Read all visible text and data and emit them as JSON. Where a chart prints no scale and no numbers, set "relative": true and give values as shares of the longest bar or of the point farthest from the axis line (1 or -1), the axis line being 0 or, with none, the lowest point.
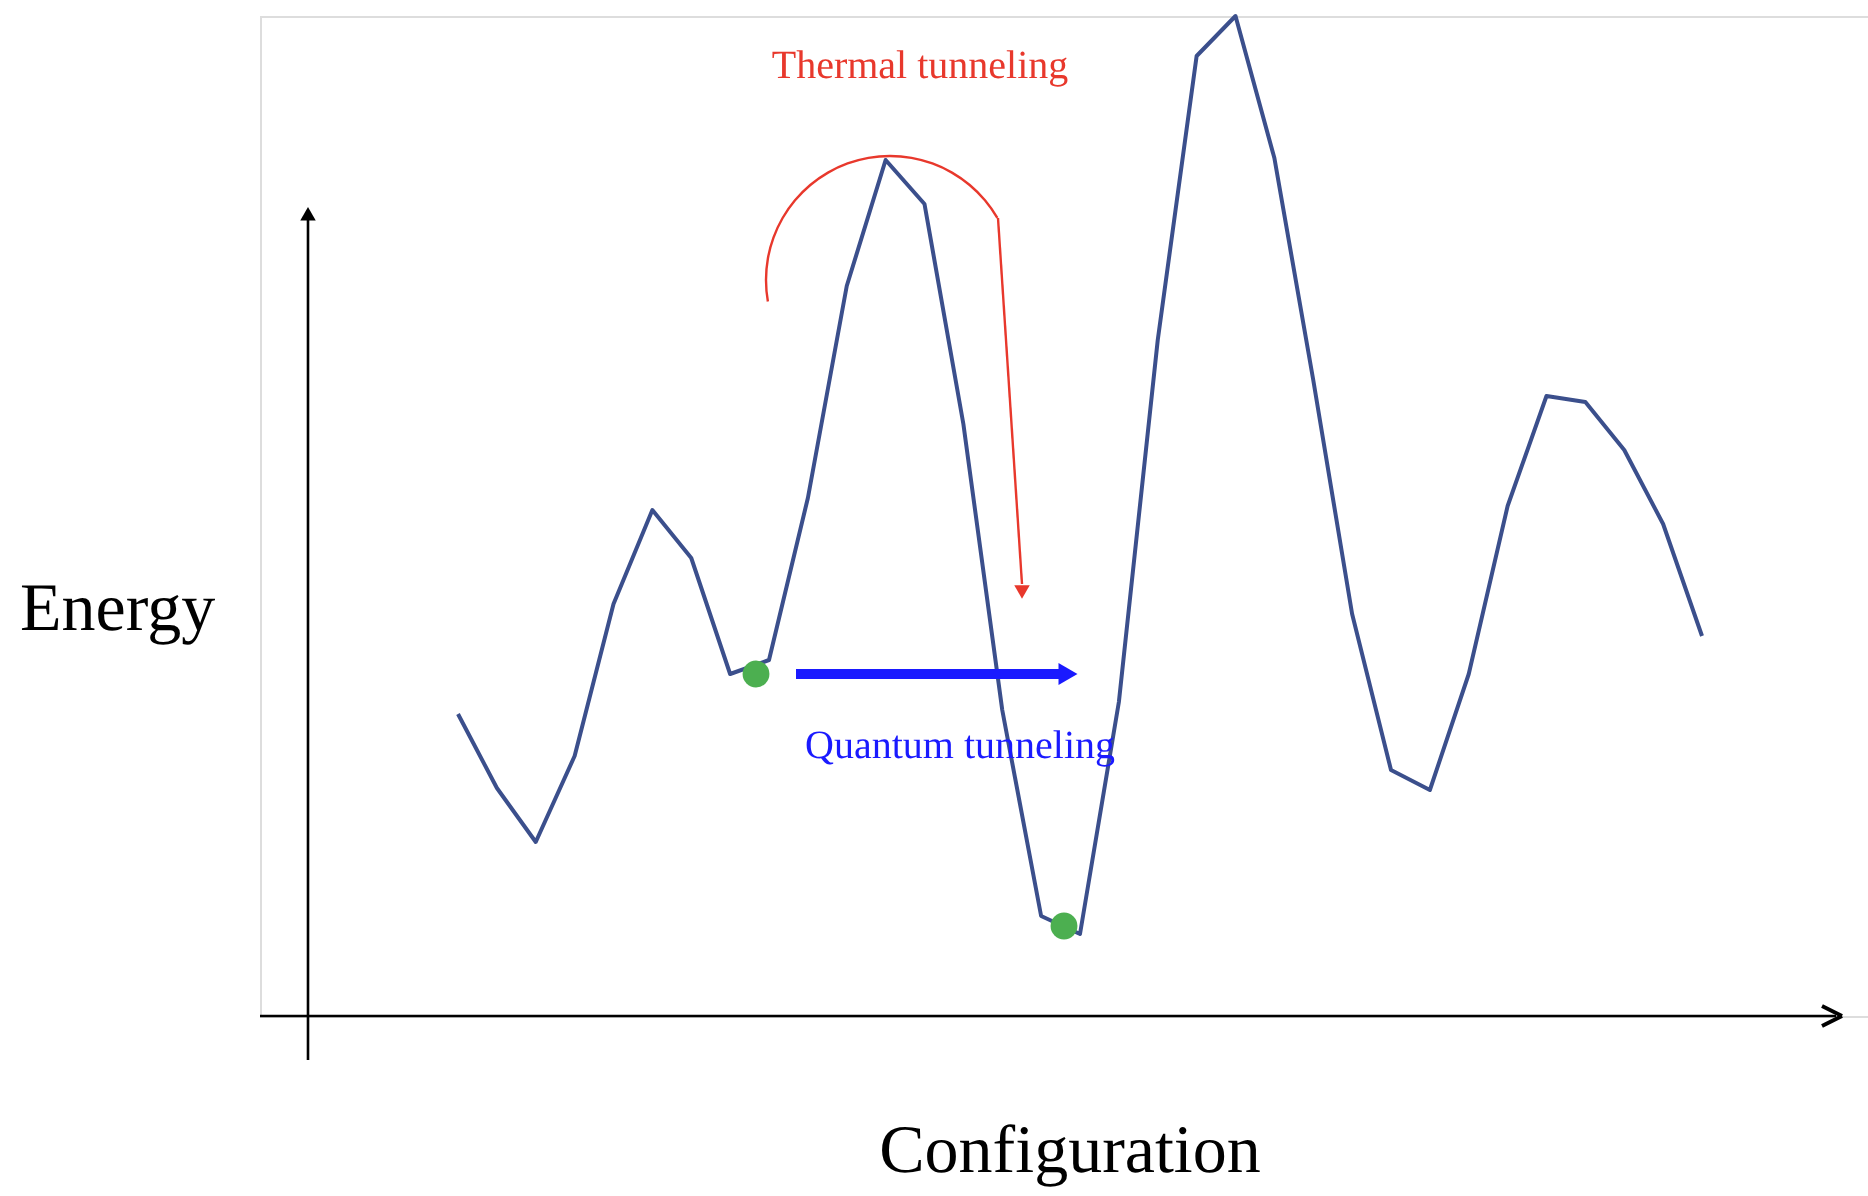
{
  "chart_data": {
    "type": "line",
    "relative": true,
    "xlabel": "Configuration",
    "ylabel": "Energy",
    "categories": [
      null,
      null,
      null,
      null,
      null,
      null,
      null,
      null,
      null,
      null,
      null,
      null,
      null,
      null,
      null,
      null,
      null,
      null,
      null,
      null,
      null,
      null,
      null,
      null,
      null,
      null,
      null,
      null,
      null,
      null,
      null,
      null,
      null
    ],
    "series": [
      {
        "color": "#3b4f8c",
        "values": [
          0.302,
          0.228,
          0.174,
          0.26,
          0.412,
          0.506,
          0.458,
          0.342,
          0.356,
          0.518,
          0.73,
          0.856,
          0.812,
          0.592,
          0.306,
          0.1,
          0.082,
          0.314,
          0.676,
          0.96,
          1.0,
          0.858,
          0.636,
          0.402,
          0.246,
          0.226,
          0.342,
          0.51,
          0.62,
          0.614,
          0.566,
          0.492,
          0.38
        ]
      }
    ],
    "marker": "none",
    "annotations": [
      "Thermal tunneling",
      "Quantum tunneling"
    ]
  }
}
